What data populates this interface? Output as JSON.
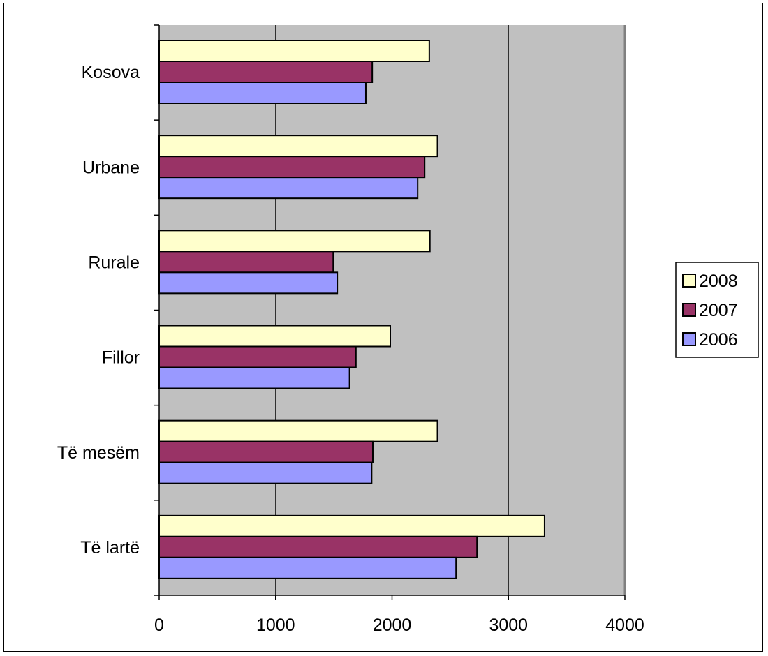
{
  "chart_data": {
    "type": "bar",
    "orientation": "horizontal",
    "categories": [
      "Kosova",
      "Urbane",
      "Rurale",
      "Fillor",
      "Të mesëm",
      "Të lartë"
    ],
    "series": [
      {
        "name": "2008",
        "color": "#ffffcc",
        "values": [
          2320,
          2390,
          2325,
          1985,
          2390,
          3310
        ]
      },
      {
        "name": "2007",
        "color": "#993366",
        "values": [
          1830,
          2280,
          1495,
          1690,
          1835,
          2730
        ]
      },
      {
        "name": "2006",
        "color": "#9999ff",
        "values": [
          1775,
          2220,
          1530,
          1635,
          1825,
          2550
        ]
      }
    ],
    "x_ticks": [
      0,
      1000,
      2000,
      3000,
      4000
    ],
    "xlim": [
      0,
      4000
    ],
    "grid": true,
    "plot_background": "#c0c0c0",
    "legend_position": "right",
    "legend_order": [
      "2008",
      "2007",
      "2006"
    ]
  }
}
